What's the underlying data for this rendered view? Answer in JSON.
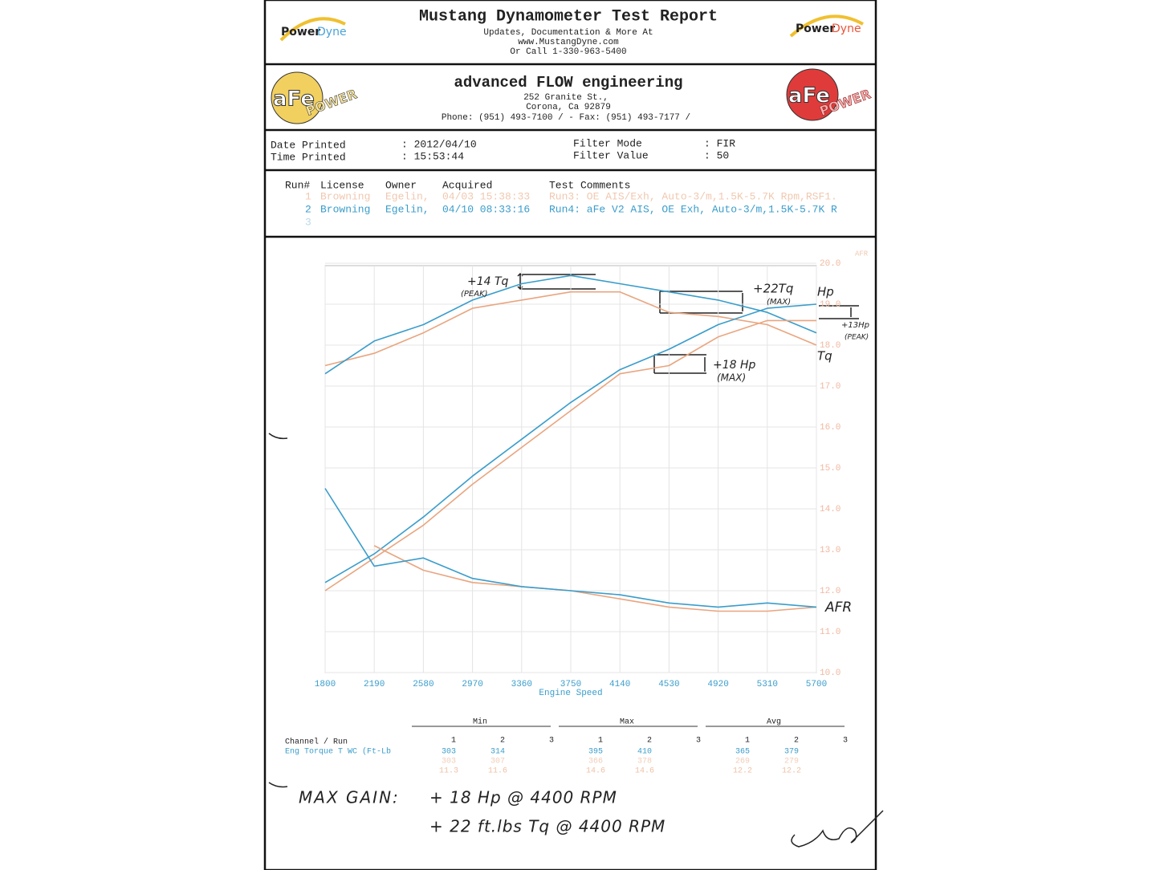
{
  "header": {
    "title": "Mustang Dynamometer Test Report",
    "lines": [
      "Updates, Documentation & More At",
      "www.MustangDyne.com",
      "Or Call 1-330-963-5400"
    ],
    "logo": [
      "Power",
      "Dyne"
    ]
  },
  "company": {
    "name": "advanced FLOW engineering",
    "lines": [
      "252 Granite St.,",
      "Corona, Ca  92879",
      "Phone: (951) 493-7100 /  - Fax: (951) 493-7177 /"
    ],
    "logo": [
      "aFe",
      "POWER"
    ]
  },
  "info": [
    [
      "Date Printed",
      ": 2012/04/10"
    ],
    [
      "Time Printed",
      ": 15:53:44"
    ],
    [
      "Filter Mode",
      ": FIR"
    ],
    [
      "Filter Value",
      ": 50"
    ]
  ],
  "runs": {
    "columns": [
      "Run#",
      "License",
      "Owner",
      "Acquired",
      "Test Comments"
    ],
    "rows": [
      [
        "1",
        "Browning",
        "Egelin,",
        "04/03 15:38:33",
        "Run3: OE AIS/Exh, Auto-3/m,1.5K-5.7K Rpm,RSF1."
      ],
      [
        "2",
        "Browning",
        "Egelin,",
        "04/10 08:33:16",
        "Run4: aFe V2 AIS, OE Exh, Auto-3/m,1.5K-5.7K R"
      ],
      [
        "3"
      ]
    ]
  },
  "chart_data": {
    "type": "line",
    "x_label": "Engine Speed",
    "y_label": "AFR",
    "x": [
      1800,
      2190,
      2580,
      2970,
      3360,
      3750,
      4140,
      4530,
      4920,
      5310,
      5700
    ],
    "xlim": [
      1800,
      5700
    ],
    "xticks": [
      1800,
      2190,
      2580,
      2970,
      3360,
      3750,
      4140,
      4530,
      4920,
      5310,
      5700
    ],
    "ylim": [
      10,
      20
    ],
    "yticks": [
      {
        "value": 20,
        "label": "20.0"
      },
      {
        "value": 19,
        "label": "19.0"
      },
      {
        "value": 18,
        "label": "18.0"
      },
      {
        "value": 17,
        "label": "17.0"
      },
      {
        "value": 16,
        "label": "16.0"
      },
      {
        "value": 15,
        "label": "15.0"
      },
      {
        "value": 14,
        "label": "14.0"
      },
      {
        "value": 13,
        "label": "13.0"
      },
      {
        "value": 12,
        "label": "12.0"
      },
      {
        "value": 11,
        "label": "11.0"
      },
      {
        "value": 10,
        "label": "10.0"
      }
    ],
    "grid": true,
    "series": [
      {
        "color": "#e9a57f",
        "values": [
          17.5,
          17.8,
          18.3,
          18.9,
          19.1,
          19.3,
          19.3,
          18.8,
          18.7,
          18.5,
          18.0
        ]
      },
      {
        "color": "#3a9dcb",
        "values": [
          17.3,
          18.1,
          18.5,
          19.1,
          19.5,
          19.7,
          19.5,
          19.3,
          19.1,
          18.8,
          18.3
        ]
      },
      {
        "color": "#e9a57f",
        "values": [
          12.0,
          12.8,
          13.6,
          14.6,
          15.5,
          16.4,
          17.3,
          17.5,
          18.2,
          18.6,
          18.6
        ]
      },
      {
        "color": "#3a9dcb",
        "values": [
          12.2,
          12.9,
          13.8,
          14.8,
          15.7,
          16.6,
          17.4,
          17.9,
          18.5,
          18.9,
          19.0
        ]
      },
      {
        "color": "#e9a57f",
        "values": [
          null,
          13.1,
          12.5,
          12.2,
          12.1,
          12.0,
          11.8,
          11.6,
          11.5,
          11.5,
          11.6
        ]
      },
      {
        "color": "#3a9dcb",
        "values": [
          14.5,
          12.6,
          12.8,
          12.3,
          12.1,
          12.0,
          11.9,
          11.7,
          11.6,
          11.7,
          11.6
        ]
      }
    ],
    "annotations": [
      "+14 Tq",
      "(PEAK)",
      "+22Tq",
      "(MAX)",
      "Hp",
      "+13Hp",
      "(PEAK)",
      "Tq",
      "+18 Hp",
      "(MAX)",
      "AFR"
    ]
  },
  "stats": {
    "groups": [
      "Min",
      "Max",
      "Avg"
    ],
    "runs": [
      "1",
      "2",
      "3"
    ],
    "channel_header": "Channel / Run",
    "rows": [
      {
        "label": "Eng Torque T WC (Ft-Lb",
        "cells": [
          [
            "303",
            "314"
          ],
          [
            "395",
            "410"
          ],
          [
            "365",
            "379"
          ]
        ]
      },
      {
        "cells": [
          [
            "303",
            "307"
          ],
          [
            "366",
            "378"
          ],
          [
            "269",
            "279"
          ]
        ]
      },
      {
        "cells": [
          [
            "11.3",
            "11.6"
          ],
          [
            "14.6",
            "14.6"
          ],
          [
            "12.2",
            "12.2"
          ]
        ]
      }
    ]
  },
  "notes": {
    "title": "MAX GAIN:",
    "lines": [
      "+ 18 Hp  @ 4400 RPM",
      "+ 22 ft.lbs Tq @ 4400 RPM"
    ]
  }
}
